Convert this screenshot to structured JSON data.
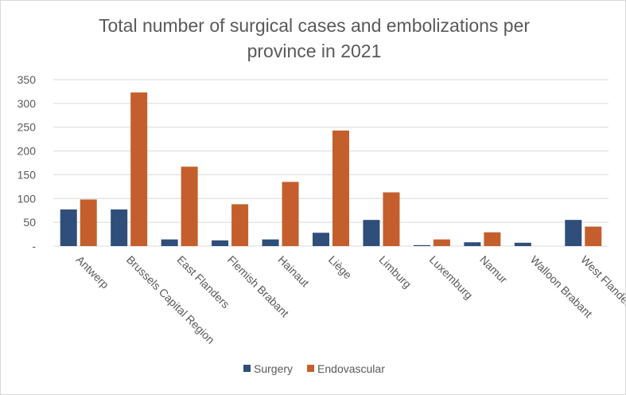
{
  "chart_data": {
    "type": "bar",
    "title_lines": [
      "Total number of surgical cases and embolizations per",
      "province in 2021"
    ],
    "categories": [
      "Antwerp",
      "Brussels Capital Region",
      "East Flanders",
      "Flemish Brabant",
      "Hainaut",
      "Liège",
      "Limburg",
      "Luxemburg",
      "Namur",
      "Walloon Brabant",
      "West Flanders"
    ],
    "series": [
      {
        "name": "Surgery",
        "color": "#2f4e79",
        "values": [
          77,
          77,
          14,
          12,
          14,
          28,
          55,
          2,
          8,
          7,
          55
        ]
      },
      {
        "name": "Endovascular",
        "color": "#c45f2d",
        "values": [
          98,
          323,
          167,
          88,
          135,
          243,
          113,
          14,
          29,
          0,
          41
        ]
      }
    ],
    "ylim": [
      0,
      350
    ],
    "yticks": [
      0,
      50,
      100,
      150,
      200,
      250,
      300,
      350
    ],
    "ytick_labels": [
      "-",
      "50",
      "100",
      "150",
      "200",
      "250",
      "300",
      "350"
    ],
    "grid": true,
    "legend_position": "bottom-center",
    "xlabel": "",
    "ylabel": ""
  }
}
